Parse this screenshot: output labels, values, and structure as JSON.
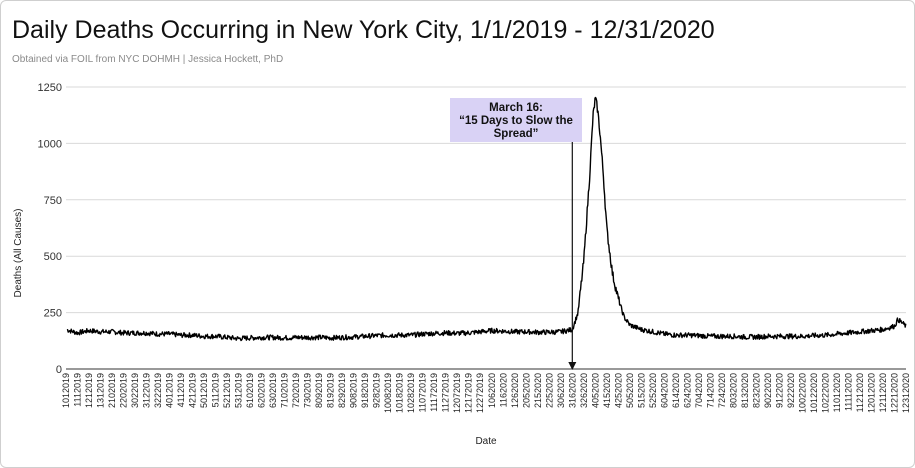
{
  "header": {
    "title": "Daily Deaths Occurring in New York City, 1/1/2019 - 12/31/2020",
    "subtitle": "Obtained via FOIL from NYC DOHMH | Jessica Hockett, PhD"
  },
  "chart_data": {
    "type": "line",
    "title": "Daily Deaths Occurring in New York City, 1/1/2019 - 12/31/2020",
    "subtitle": "Obtained via FOIL from NYC DOHMH | Jessica Hockett, PhD",
    "xlabel": "Date",
    "ylabel": "Deaths (All Causes)",
    "ylim": [
      0,
      1250
    ],
    "yticks": [
      0,
      250,
      500,
      750,
      1000,
      1250
    ],
    "grid": "horizontal",
    "legend": "none",
    "line_color": "#000000",
    "x_tick_labels": [
      "1012019",
      "1112019",
      "1212019",
      "1312019",
      "2102019",
      "2202019",
      "3022019",
      "3122019",
      "3222019",
      "4012019",
      "4112019",
      "4212019",
      "5012019",
      "5112019",
      "5212019",
      "5312019",
      "6102019",
      "6202019",
      "6302019",
      "7102019",
      "7202019",
      "7302019",
      "8092019",
      "8192019",
      "8292019",
      "9082019",
      "9182019",
      "9282019",
      "10082019",
      "10182019",
      "10282019",
      "11072019",
      "11172019",
      "11272019",
      "12072019",
      "12172019",
      "12272019",
      "1062020",
      "1162020",
      "1262020",
      "2052020",
      "2152020",
      "2252020",
      "3062020",
      "3162020",
      "3262020",
      "4052020",
      "4152020",
      "4252020",
      "5052020",
      "5152020",
      "5252020",
      "6042020",
      "6142020",
      "6242020",
      "7042020",
      "7142020",
      "7242020",
      "8032020",
      "8132020",
      "8232020",
      "9022020",
      "9122020",
      "9222020",
      "10022020",
      "10122020",
      "10222020",
      "11012020",
      "11112020",
      "11212020",
      "12012020",
      "12112020",
      "12212020",
      "12312020"
    ],
    "x": [
      "1/1/2019",
      "1/11/2019",
      "1/21/2019",
      "1/31/2019",
      "2/10/2019",
      "2/20/2019",
      "3/2/2019",
      "3/12/2019",
      "3/22/2019",
      "4/1/2019",
      "4/11/2019",
      "4/21/2019",
      "5/1/2019",
      "5/11/2019",
      "5/21/2019",
      "5/31/2019",
      "6/10/2019",
      "6/20/2019",
      "6/30/2019",
      "7/10/2019",
      "7/20/2019",
      "7/30/2019",
      "8/9/2019",
      "8/19/2019",
      "8/29/2019",
      "9/8/2019",
      "9/18/2019",
      "9/28/2019",
      "10/8/2019",
      "10/18/2019",
      "10/28/2019",
      "11/7/2019",
      "11/17/2019",
      "11/27/2019",
      "12/7/2019",
      "12/17/2019",
      "12/27/2019",
      "1/6/2020",
      "1/16/2020",
      "1/26/2020",
      "2/5/2020",
      "2/15/2020",
      "2/25/2020",
      "3/6/2020",
      "3/11/2020",
      "3/16/2020",
      "3/21/2020",
      "3/26/2020",
      "3/31/2020",
      "4/3/2020",
      "4/5/2020",
      "4/7/2020",
      "4/9/2020",
      "4/12/2020",
      "4/15/2020",
      "4/20/2020",
      "4/25/2020",
      "4/30/2020",
      "5/5/2020",
      "5/10/2020",
      "5/15/2020",
      "5/25/2020",
      "6/4/2020",
      "6/14/2020",
      "6/24/2020",
      "7/4/2020",
      "7/14/2020",
      "7/24/2020",
      "8/3/2020",
      "8/13/2020",
      "8/23/2020",
      "9/2/2020",
      "9/12/2020",
      "9/22/2020",
      "10/2/2020",
      "10/12/2020",
      "10/22/2020",
      "11/1/2020",
      "11/11/2020",
      "11/21/2020",
      "12/1/2020",
      "12/11/2020",
      "12/21/2020",
      "12/24/2020",
      "12/31/2020"
    ],
    "values": [
      175,
      160,
      170,
      165,
      165,
      160,
      160,
      160,
      155,
      155,
      150,
      150,
      145,
      145,
      140,
      135,
      138,
      140,
      140,
      138,
      140,
      140,
      140,
      138,
      140,
      142,
      145,
      148,
      150,
      150,
      150,
      155,
      158,
      160,
      158,
      160,
      165,
      170,
      168,
      165,
      165,
      163,
      163,
      165,
      170,
      175,
      250,
      480,
      850,
      1120,
      1200,
      1150,
      1050,
      860,
      620,
      420,
      310,
      230,
      195,
      185,
      175,
      165,
      155,
      150,
      150,
      148,
      145,
      145,
      145,
      142,
      142,
      145,
      145,
      145,
      145,
      148,
      150,
      155,
      160,
      165,
      170,
      175,
      190,
      220,
      190
    ],
    "annotation": {
      "x": "3/16/2020",
      "lines": [
        "March 16:",
        "“15 Days to Slow the",
        "Spread”"
      ]
    }
  }
}
